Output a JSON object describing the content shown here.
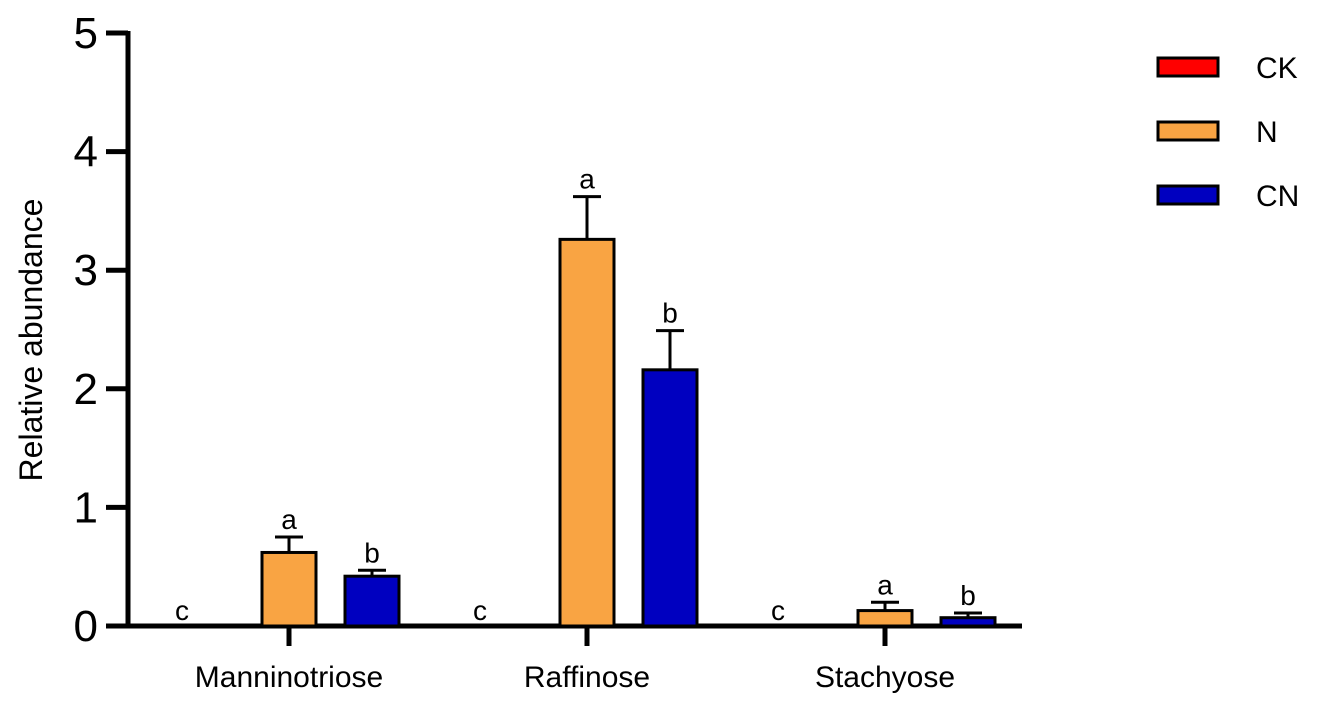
{
  "chart_data": {
    "type": "bar",
    "ylabel": "Relative abundance",
    "ylim": [
      0,
      5
    ],
    "yticks": [
      "0",
      "1",
      "2",
      "3",
      "4",
      "5"
    ],
    "categories": [
      "Manninotriose",
      "Raffinose",
      "Stachyose"
    ],
    "series": [
      {
        "name": "CK",
        "color": "#ff0000",
        "values": [
          0,
          0,
          0
        ],
        "errors": [
          0,
          0,
          0
        ],
        "letters": [
          "c",
          "c",
          "c"
        ]
      },
      {
        "name": "N",
        "color": "#f9a443",
        "values": [
          0.62,
          3.26,
          0.13
        ],
        "errors": [
          0.13,
          0.36,
          0.07
        ],
        "letters": [
          "a",
          "a",
          "a"
        ]
      },
      {
        "name": "CN",
        "color": "#0000c0",
        "values": [
          0.42,
          2.16,
          0.07
        ],
        "errors": [
          0.05,
          0.33,
          0.04
        ],
        "letters": [
          "b",
          "b",
          "b"
        ]
      }
    ],
    "legend_position": "top-right",
    "grid": false
  }
}
